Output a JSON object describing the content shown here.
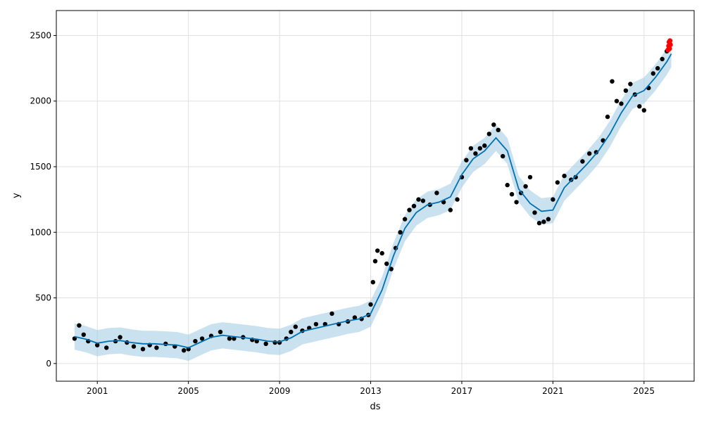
{
  "chart_data": {
    "type": "line",
    "title": "",
    "xlabel": "ds",
    "ylabel": "y",
    "xlim": [
      1999.2,
      2027.2
    ],
    "ylim": [
      -135,
      2690
    ],
    "x_ticks": [
      2001,
      2005,
      2009,
      2013,
      2017,
      2021,
      2025
    ],
    "x_tick_labels": [
      "2001",
      "2005",
      "2009",
      "2013",
      "2017",
      "2021",
      "2025"
    ],
    "y_ticks": [
      0,
      500,
      1000,
      1500,
      2000,
      2500
    ],
    "y_tick_labels": [
      "0",
      "500",
      "1000",
      "1500",
      "2000",
      "2500"
    ],
    "grid": true,
    "legend": "none",
    "colors": {
      "observed": "#000000",
      "forecast_line": "#0072B2",
      "uncertainty_band": "#9ECAE1",
      "future_points": "#FF0000",
      "grid": "#e0e0e0"
    },
    "series": [
      {
        "role": "observed",
        "x": [
          2000.0,
          2000.2,
          2000.4,
          2000.6,
          2001.0,
          2001.4,
          2001.8,
          2002.0,
          2002.3,
          2002.6,
          2003.0,
          2003.3,
          2003.6,
          2004.0,
          2004.4,
          2004.8,
          2005.0,
          2005.3,
          2005.6,
          2006.0,
          2006.4,
          2006.8,
          2007.0,
          2007.4,
          2007.8,
          2008.0,
          2008.4,
          2008.8,
          2009.0,
          2009.3,
          2009.5,
          2009.7,
          2010.0,
          2010.3,
          2010.6,
          2011.0,
          2011.3,
          2011.6,
          2012.0,
          2012.3,
          2012.6,
          2012.9,
          2013.0,
          2013.1,
          2013.2,
          2013.3,
          2013.5,
          2013.7,
          2013.9,
          2014.1,
          2014.3,
          2014.5,
          2014.7,
          2014.9,
          2015.1,
          2015.3,
          2015.6,
          2015.9,
          2016.2,
          2016.5,
          2016.8,
          2017.0,
          2017.2,
          2017.4,
          2017.6,
          2017.8,
          2018.0,
          2018.2,
          2018.4,
          2018.6,
          2018.8,
          2019.0,
          2019.2,
          2019.4,
          2019.6,
          2019.8,
          2020.0,
          2020.2,
          2020.4,
          2020.6,
          2020.8,
          2021.0,
          2021.2,
          2021.5,
          2021.8,
          2022.0,
          2022.3,
          2022.6,
          2022.9,
          2023.2,
          2023.4,
          2023.6,
          2023.8,
          2024.0,
          2024.2,
          2024.4,
          2024.6,
          2024.8,
          2025.0,
          2025.2,
          2025.4,
          2025.6,
          2025.8,
          2026.0
        ],
        "y": [
          190,
          290,
          220,
          170,
          140,
          120,
          170,
          200,
          160,
          130,
          110,
          140,
          120,
          150,
          130,
          100,
          110,
          170,
          190,
          210,
          240,
          190,
          190,
          200,
          180,
          170,
          150,
          160,
          160,
          190,
          240,
          280,
          250,
          270,
          300,
          300,
          380,
          300,
          320,
          350,
          340,
          370,
          450,
          620,
          780,
          860,
          840,
          760,
          720,
          880,
          1000,
          1100,
          1170,
          1200,
          1250,
          1240,
          1210,
          1300,
          1230,
          1170,
          1250,
          1420,
          1550,
          1640,
          1600,
          1640,
          1660,
          1750,
          1820,
          1780,
          1580,
          1360,
          1290,
          1230,
          1300,
          1350,
          1420,
          1150,
          1070,
          1080,
          1100,
          1250,
          1380,
          1430,
          1400,
          1420,
          1540,
          1600,
          1610,
          1700,
          1880,
          2150,
          2000,
          1980,
          2080,
          2130,
          2050,
          1960,
          1930,
          2100,
          2210,
          2250,
          2320,
          2380
        ]
      },
      {
        "role": "forecast",
        "x": [
          2000.0,
          2000.5,
          2001.0,
          2001.5,
          2002.0,
          2002.5,
          2003.0,
          2003.5,
          2004.0,
          2004.5,
          2005.0,
          2005.5,
          2006.0,
          2006.5,
          2007.0,
          2007.5,
          2008.0,
          2008.5,
          2009.0,
          2009.5,
          2010.0,
          2010.5,
          2011.0,
          2011.5,
          2012.0,
          2012.5,
          2013.0,
          2013.5,
          2014.0,
          2014.5,
          2015.0,
          2015.5,
          2016.0,
          2016.5,
          2017.0,
          2017.5,
          2018.0,
          2018.5,
          2019.0,
          2019.5,
          2020.0,
          2020.5,
          2021.0,
          2021.5,
          2022.0,
          2022.5,
          2023.0,
          2023.5,
          2024.0,
          2024.5,
          2025.0,
          2025.5,
          2026.0,
          2026.2
        ],
        "y": [
          205,
          185,
          155,
          170,
          175,
          160,
          150,
          150,
          145,
          140,
          120,
          160,
          200,
          215,
          205,
          195,
          185,
          170,
          165,
          195,
          245,
          265,
          285,
          305,
          325,
          340,
          380,
          560,
          820,
          1030,
          1150,
          1210,
          1230,
          1270,
          1440,
          1560,
          1620,
          1720,
          1620,
          1330,
          1220,
          1160,
          1170,
          1340,
          1430,
          1520,
          1620,
          1750,
          1910,
          2040,
          2080,
          2180,
          2300,
          2360
        ]
      },
      {
        "role": "uncertainty_upper",
        "x": [
          2000.0,
          2000.5,
          2001.0,
          2001.5,
          2002.0,
          2002.5,
          2003.0,
          2003.5,
          2004.0,
          2004.5,
          2005.0,
          2005.5,
          2006.0,
          2006.5,
          2007.0,
          2007.5,
          2008.0,
          2008.5,
          2009.0,
          2009.5,
          2010.0,
          2010.5,
          2011.0,
          2011.5,
          2012.0,
          2012.5,
          2013.0,
          2013.5,
          2014.0,
          2014.5,
          2015.0,
          2015.5,
          2016.0,
          2016.5,
          2017.0,
          2017.5,
          2018.0,
          2018.5,
          2019.0,
          2019.5,
          2020.0,
          2020.5,
          2021.0,
          2021.5,
          2022.0,
          2022.5,
          2023.0,
          2023.5,
          2024.0,
          2024.5,
          2025.0,
          2025.5,
          2026.0,
          2026.2
        ],
        "y": [
          305,
          285,
          255,
          270,
          275,
          260,
          250,
          250,
          245,
          240,
          220,
          260,
          300,
          315,
          305,
          295,
          285,
          270,
          265,
          295,
          345,
          365,
          385,
          405,
          425,
          440,
          480,
          660,
          920,
          1130,
          1250,
          1310,
          1330,
          1370,
          1540,
          1660,
          1720,
          1820,
          1720,
          1430,
          1320,
          1260,
          1270,
          1440,
          1530,
          1620,
          1720,
          1850,
          2010,
          2140,
          2180,
          2280,
          2400,
          2460
        ]
      },
      {
        "role": "uncertainty_lower",
        "x": [
          2000.0,
          2000.5,
          2001.0,
          2001.5,
          2002.0,
          2002.5,
          2003.0,
          2003.5,
          2004.0,
          2004.5,
          2005.0,
          2005.5,
          2006.0,
          2006.5,
          2007.0,
          2007.5,
          2008.0,
          2008.5,
          2009.0,
          2009.5,
          2010.0,
          2010.5,
          2011.0,
          2011.5,
          2012.0,
          2012.5,
          2013.0,
          2013.5,
          2014.0,
          2014.5,
          2015.0,
          2015.5,
          2016.0,
          2016.5,
          2017.0,
          2017.5,
          2018.0,
          2018.5,
          2019.0,
          2019.5,
          2020.0,
          2020.5,
          2021.0,
          2021.5,
          2022.0,
          2022.5,
          2023.0,
          2023.5,
          2024.0,
          2024.5,
          2025.0,
          2025.5,
          2026.0,
          2026.2
        ],
        "y": [
          105,
          85,
          55,
          70,
          75,
          60,
          50,
          50,
          45,
          40,
          20,
          60,
          100,
          115,
          105,
          95,
          85,
          70,
          65,
          95,
          145,
          165,
          185,
          205,
          225,
          240,
          280,
          460,
          720,
          930,
          1050,
          1110,
          1130,
          1170,
          1340,
          1460,
          1520,
          1620,
          1520,
          1230,
          1120,
          1060,
          1070,
          1240,
          1330,
          1420,
          1520,
          1650,
          1810,
          1940,
          1980,
          2080,
          2200,
          2260
        ]
      },
      {
        "role": "future_points",
        "x": [
          2026.05,
          2026.08,
          2026.1,
          2026.12,
          2026.14,
          2026.16
        ],
        "y": [
          2390,
          2420,
          2450,
          2400,
          2460,
          2430
        ]
      }
    ]
  }
}
